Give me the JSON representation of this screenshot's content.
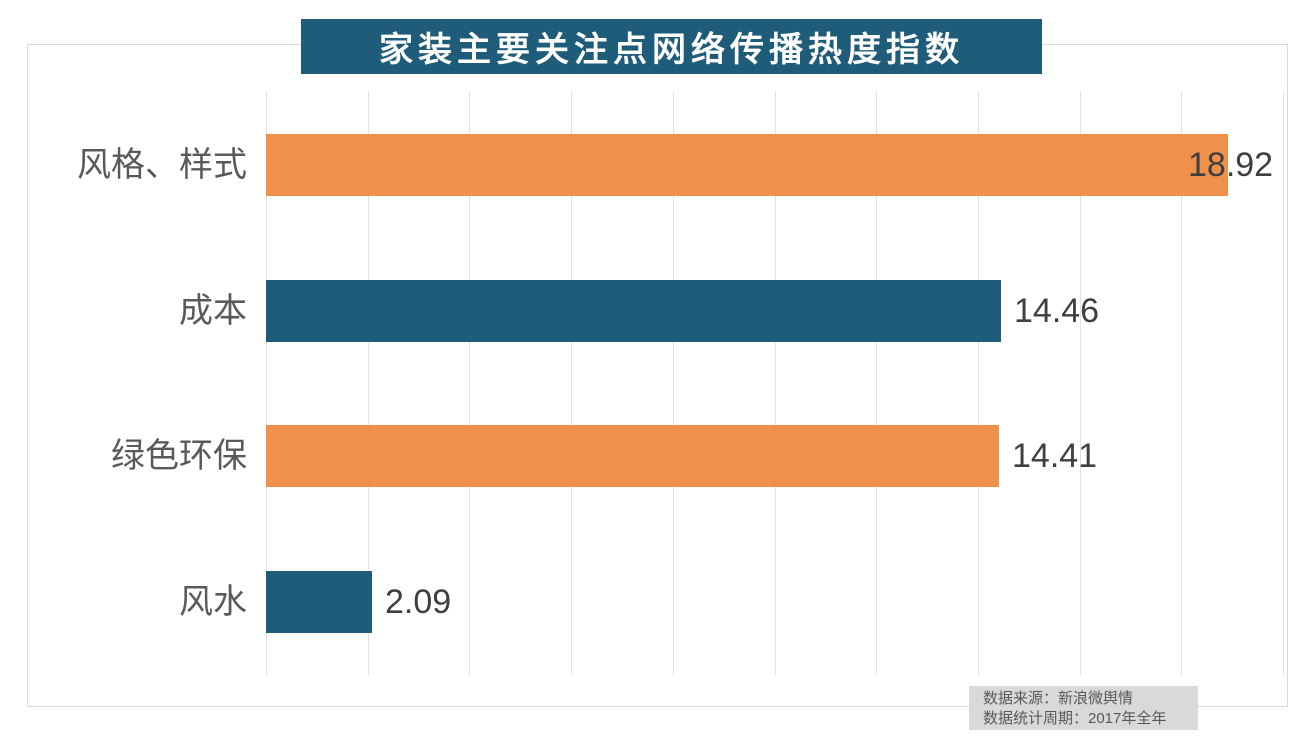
{
  "chart_data": {
    "type": "bar",
    "orientation": "horizontal",
    "title": "家装主要关注点网络传播热度指数",
    "categories": [
      "风格、样式",
      "成本",
      "绿色环保",
      "风水"
    ],
    "values": [
      18.92,
      14.46,
      14.41,
      2.09
    ],
    "value_labels": [
      "18.92",
      "14.46",
      "14.41",
      "2.09"
    ],
    "series_colors": [
      "#F0914B",
      "#1F5C7A",
      "#F0914B",
      "#1F5C7A"
    ],
    "xlim": [
      0,
      20
    ],
    "x_gridline_step": 2,
    "grid": "vertical-only",
    "legend": "none",
    "axis_tick_labels": "none",
    "source_note": {
      "line1": "数据来源：新浪微舆情",
      "line2": "数据统计周期：2017年全年"
    }
  },
  "colors": {
    "banner_bg": "#1F5C7A",
    "banner_text": "#ffffff",
    "bar_orange": "#F0914B",
    "bar_teal": "#1F5C7A",
    "gridline": "#e1e1e1",
    "frame_border": "#d9d9d9",
    "category_label_text": "#595959",
    "value_label_text": "#3f3f3f",
    "source_bg": "#d9d9d9",
    "source_text": "#595959"
  }
}
